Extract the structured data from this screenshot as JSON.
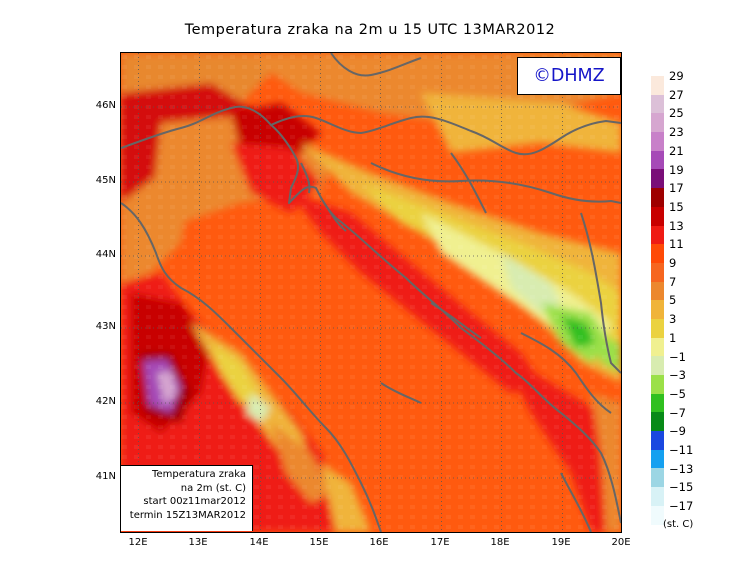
{
  "title": "Temperatura zraka na 2m u 15 UTC 13MAR2012",
  "copyright": "©DHMZ",
  "info_box": {
    "line1": "Temperatura zraka",
    "line2": "na 2m (st. C)",
    "line3": "start 00z11mar2012",
    "line4": "termin 15Z13MAR2012"
  },
  "y_ticks": [
    "46N",
    "45N",
    "44N",
    "43N",
    "42N",
    "41N"
  ],
  "x_ticks": [
    "12E",
    "13E",
    "14E",
    "15E",
    "16E",
    "17E",
    "18E",
    "19E",
    "20E"
  ],
  "colorbar": {
    "labels": [
      "29",
      "27",
      "25",
      "23",
      "21",
      "19",
      "17",
      "15",
      "13",
      "11",
      "9",
      "7",
      "5",
      "3",
      "1",
      "−1",
      "−3",
      "−5",
      "−7",
      "−9",
      "−11",
      "−13",
      "−15",
      "−17"
    ],
    "colors": [
      "#fbe9dc",
      "#dcc0d8",
      "#d6a6d0",
      "#c880c9",
      "#a64ab7",
      "#7a0e78",
      "#9e0000",
      "#c80000",
      "#ef1b14",
      "#ff4a06",
      "#f6661f",
      "#ec882e",
      "#f0b43a",
      "#ebd240",
      "#f0f090",
      "#d8ecb0",
      "#9be048",
      "#30c020",
      "#088a18",
      "#1a48e0",
      "#15a0f0",
      "#9cd6e4",
      "#d8f2f6",
      "#f0fbfd"
    ],
    "unit": "(st. C)"
  },
  "map": {
    "projection": "lat-lon",
    "lon_range": [
      11.8,
      20.0
    ],
    "lat_range": [
      40.3,
      46.8
    ],
    "grid": "dotted every 1°"
  }
}
